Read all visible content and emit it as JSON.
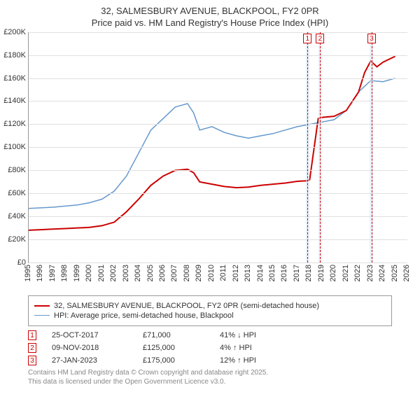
{
  "title": {
    "line1": "32, SALMESBURY AVENUE, BLACKPOOL, FY2 0PR",
    "line2": "Price paid vs. HM Land Registry's House Price Index (HPI)"
  },
  "chart": {
    "type": "line",
    "background_color": "#ffffff",
    "grid_color": "#e0e0e0",
    "axis_color": "#999999",
    "xlim": [
      1995,
      2026
    ],
    "ylim": [
      0,
      200000
    ],
    "y_ticks": [
      0,
      20000,
      40000,
      60000,
      80000,
      100000,
      120000,
      140000,
      160000,
      180000,
      200000
    ],
    "y_tick_labels": [
      "£0",
      "£20K",
      "£40K",
      "£60K",
      "£80K",
      "£100K",
      "£120K",
      "£140K",
      "£160K",
      "£180K",
      "£200K"
    ],
    "x_ticks": [
      1995,
      1996,
      1997,
      1998,
      1999,
      2000,
      2001,
      2002,
      2003,
      2004,
      2005,
      2006,
      2007,
      2008,
      2009,
      2010,
      2011,
      2012,
      2013,
      2014,
      2015,
      2016,
      2017,
      2018,
      2019,
      2020,
      2021,
      2022,
      2023,
      2024,
      2025,
      2026
    ],
    "label_fontsize": 11,
    "series": {
      "property": {
        "color": "#cc0000",
        "width": 2,
        "label": "32, SALMESBURY AVENUE, BLACKPOOL, FY2 0PR (semi-detached house)",
        "points": [
          [
            1995,
            28000
          ],
          [
            1996,
            28500
          ],
          [
            1997,
            29000
          ],
          [
            1998,
            29500
          ],
          [
            1999,
            30000
          ],
          [
            2000,
            30500
          ],
          [
            2001,
            32000
          ],
          [
            2002,
            35000
          ],
          [
            2003,
            44000
          ],
          [
            2004,
            55000
          ],
          [
            2005,
            67000
          ],
          [
            2006,
            75000
          ],
          [
            2007,
            80000
          ],
          [
            2008,
            81000
          ],
          [
            2008.5,
            78000
          ],
          [
            2009,
            70000
          ],
          [
            2010,
            68000
          ],
          [
            2011,
            66000
          ],
          [
            2012,
            65000
          ],
          [
            2013,
            65500
          ],
          [
            2014,
            67000
          ],
          [
            2015,
            68000
          ],
          [
            2016,
            69000
          ],
          [
            2017,
            70500
          ],
          [
            2017.8,
            71000
          ],
          [
            2018,
            72000
          ],
          [
            2018.7,
            125000
          ],
          [
            2019,
            126000
          ],
          [
            2020,
            127000
          ],
          [
            2021,
            132000
          ],
          [
            2022,
            148000
          ],
          [
            2022.5,
            165000
          ],
          [
            2023,
            175000
          ],
          [
            2023.5,
            170000
          ],
          [
            2024,
            174000
          ],
          [
            2025,
            179000
          ]
        ]
      },
      "hpi": {
        "color": "#6699cc",
        "width": 1.5,
        "label": "HPI: Average price, semi-detached house, Blackpool",
        "points": [
          [
            1995,
            47000
          ],
          [
            1996,
            47500
          ],
          [
            1997,
            48000
          ],
          [
            1998,
            49000
          ],
          [
            1999,
            50000
          ],
          [
            2000,
            52000
          ],
          [
            2001,
            55000
          ],
          [
            2002,
            62000
          ],
          [
            2003,
            75000
          ],
          [
            2004,
            95000
          ],
          [
            2005,
            115000
          ],
          [
            2006,
            125000
          ],
          [
            2007,
            135000
          ],
          [
            2008,
            138000
          ],
          [
            2008.5,
            130000
          ],
          [
            2009,
            115000
          ],
          [
            2010,
            118000
          ],
          [
            2011,
            113000
          ],
          [
            2012,
            110000
          ],
          [
            2013,
            108000
          ],
          [
            2014,
            110000
          ],
          [
            2015,
            112000
          ],
          [
            2016,
            115000
          ],
          [
            2017,
            118000
          ],
          [
            2018,
            120000
          ],
          [
            2019,
            122000
          ],
          [
            2020,
            124000
          ],
          [
            2021,
            132000
          ],
          [
            2022,
            148000
          ],
          [
            2023,
            158000
          ],
          [
            2024,
            157000
          ],
          [
            2025,
            160000
          ]
        ]
      }
    },
    "markers": [
      {
        "id": "1",
        "x": 2017.82,
        "band_width_years": 0.3
      },
      {
        "id": "2",
        "x": 2018.86,
        "band_width_years": 0.3
      },
      {
        "id": "3",
        "x": 2023.07,
        "band_width_years": 0.3
      }
    ]
  },
  "transactions": [
    {
      "id": "1",
      "date": "25-OCT-2017",
      "price": "£71,000",
      "delta": "41% ↓ HPI"
    },
    {
      "id": "2",
      "date": "09-NOV-2018",
      "price": "£125,000",
      "delta": "4% ↑ HPI"
    },
    {
      "id": "3",
      "date": "27-JAN-2023",
      "price": "£175,000",
      "delta": "12% ↑ HPI"
    }
  ],
  "footer": {
    "line1": "Contains HM Land Registry data © Crown copyright and database right 2025.",
    "line2": "This data is licensed under the Open Government Licence v3.0."
  }
}
